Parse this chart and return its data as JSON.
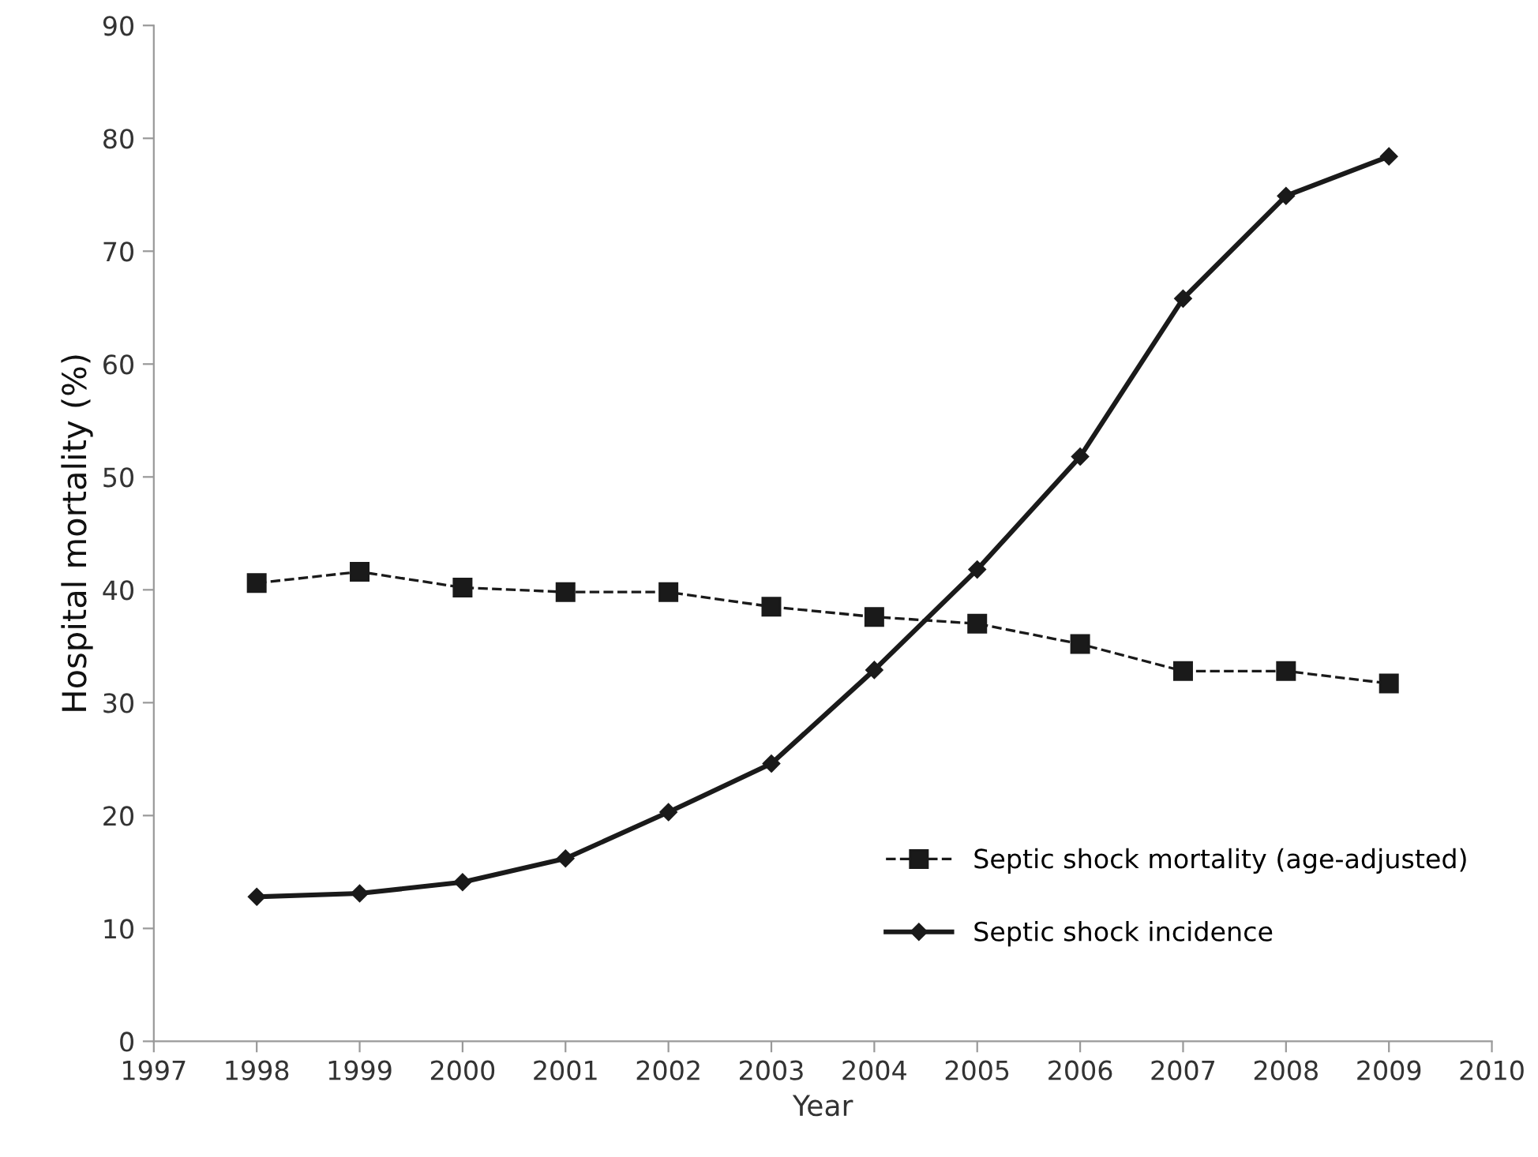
{
  "chart_data": {
    "type": "line",
    "xlabel": "Year",
    "ylabel": "Hospital mortality (%)",
    "x": [
      1998,
      1999,
      2000,
      2001,
      2002,
      2003,
      2004,
      2005,
      2006,
      2007,
      2008,
      2009
    ],
    "series": [
      {
        "name": "Septic shock mortality (age-adjusted)",
        "color": "#1a1a1a",
        "marker": "square",
        "line_style": "dashed",
        "values": [
          40.6,
          41.6,
          40.2,
          39.8,
          39.8,
          38.5,
          37.6,
          37.0,
          35.2,
          32.8,
          32.8,
          31.7
        ]
      },
      {
        "name": "Septic shock incidence",
        "color": "#1a1a1a",
        "marker": "diamond",
        "line_style": "solid",
        "values": [
          12.8,
          13.1,
          14.1,
          16.2,
          20.3,
          24.6,
          32.9,
          41.8,
          51.8,
          65.8,
          74.9,
          78.4
        ]
      }
    ],
    "xlim": [
      1997,
      2010
    ],
    "xticks": [
      1997,
      1998,
      1999,
      2000,
      2001,
      2002,
      2003,
      2004,
      2005,
      2006,
      2007,
      2008,
      2009,
      2010
    ],
    "ylim": [
      0,
      90
    ],
    "yticks": [
      0,
      10,
      20,
      30,
      40,
      50,
      60,
      70,
      80,
      90
    ],
    "grid": false,
    "legend": "bottom right"
  }
}
